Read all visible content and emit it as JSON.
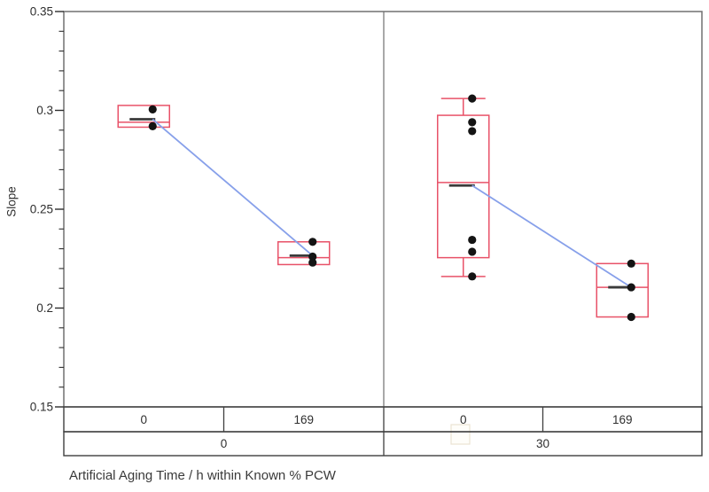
{
  "chart_data": {
    "type": "box",
    "variant": "variability chart: box plots with raw data points and lines connecting cell means",
    "title": "",
    "ylabel": "Slope",
    "xlabel": "Artificial Aging Time / h within Known % PCW",
    "ylim": [
      0.15,
      0.35
    ],
    "yticks": [
      0.15,
      0.2,
      0.25,
      0.3,
      0.35
    ],
    "ytick_labels": [
      "0.15",
      "0.2",
      "0.25",
      "0.3",
      "0.35"
    ],
    "minor_tick_step": 0.01,
    "grid": false,
    "legend": null,
    "x_axis_levels": [
      "Artificial Aging Time / h",
      "Known % PCW"
    ],
    "panels": [
      {
        "group_label": "0",
        "cells": [
          {
            "label": "0",
            "q1": 0.2915,
            "median": 0.294,
            "q3": 0.3025,
            "mean": 0.2955,
            "whisker_low": null,
            "whisker_high": null,
            "points": [
              0.3005,
              0.292
            ]
          },
          {
            "label": "169",
            "q1": 0.222,
            "median": 0.2255,
            "q3": 0.2335,
            "mean": 0.2265,
            "whisker_low": null,
            "whisker_high": null,
            "points": [
              0.2335,
              0.226,
              0.223
            ]
          }
        ]
      },
      {
        "group_label": "30",
        "cells": [
          {
            "label": "0",
            "q1": 0.2255,
            "median": 0.2635,
            "q3": 0.2975,
            "mean": 0.262,
            "whisker_low": 0.216,
            "whisker_high": 0.306,
            "points": [
              0.306,
              0.294,
              0.2895,
              0.2345,
              0.2285,
              0.216
            ]
          },
          {
            "label": "169",
            "q1": 0.1955,
            "median": 0.2105,
            "q3": 0.2225,
            "mean": 0.2105,
            "whisker_low": null,
            "whisker_high": null,
            "points": [
              0.2225,
              0.2105,
              0.1955
            ]
          }
        ]
      }
    ],
    "colors": {
      "background": "#ffffff",
      "box_outline": "#e85268",
      "median_line": "#e85268",
      "mean_line": "#3a3a3a",
      "connect_line": "#87a0ea",
      "points": "#141414",
      "plot_frame": "#707070",
      "table_border": "#3f3f3f",
      "text": "#2e2e2e",
      "ghost_artifact": "#ebe3d2"
    }
  }
}
